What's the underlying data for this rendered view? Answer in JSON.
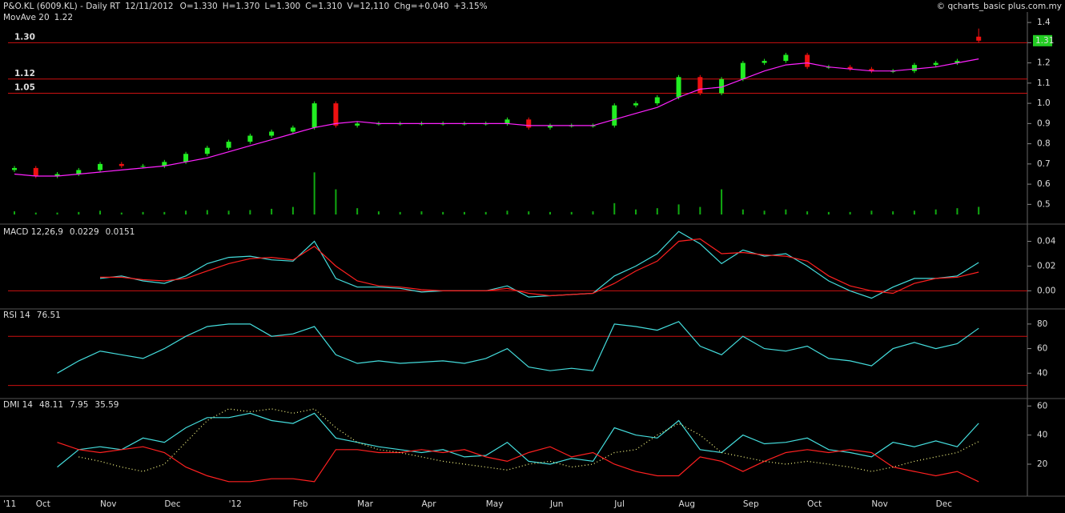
{
  "header": {
    "title": "P&O.KL (6009.KL) - Daily RT",
    "date": "12/11/2012",
    "quote": [
      "O=1.330",
      "H=1.370",
      "L=1.300",
      "C=1.310",
      "V=12,110",
      "Chg=+0.040",
      "+3.15%"
    ],
    "copyright": "© qcharts_basic plus.com.my"
  },
  "chart_data": [
    {
      "type": "candlestick",
      "categories": [
        "'11",
        "Oct",
        null,
        null,
        "Nov",
        null,
        null,
        "Dec",
        null,
        null,
        "'12",
        null,
        null,
        "Feb",
        null,
        null,
        "Mar",
        null,
        null,
        "Apr",
        null,
        null,
        "May",
        null,
        null,
        "Jun",
        null,
        null,
        "Jul",
        null,
        null,
        "Aug",
        null,
        null,
        "Sep",
        null,
        null,
        "Oct",
        null,
        null,
        "Nov",
        null,
        null,
        "Dec",
        null,
        null
      ],
      "open": [
        0.67,
        0.68,
        0.64,
        0.65,
        0.67,
        0.7,
        0.69,
        0.69,
        0.71,
        0.75,
        0.78,
        0.81,
        0.84,
        0.86,
        0.88,
        1.0,
        0.89,
        0.9,
        0.9,
        0.9,
        0.9,
        0.9,
        0.9,
        0.9,
        0.92,
        0.88,
        0.89,
        0.89,
        0.89,
        0.99,
        1.0,
        1.03,
        1.13,
        1.05,
        1.12,
        1.2,
        1.21,
        1.24,
        1.18,
        1.18,
        1.17,
        1.16,
        1.16,
        1.19,
        1.2,
        1.33
      ],
      "high": [
        0.69,
        0.69,
        0.66,
        0.68,
        0.71,
        0.71,
        0.7,
        0.72,
        0.76,
        0.79,
        0.82,
        0.85,
        0.87,
        0.89,
        1.01,
        1.01,
        0.91,
        0.91,
        0.91,
        0.91,
        0.91,
        0.91,
        0.91,
        0.93,
        0.93,
        0.9,
        0.9,
        0.9,
        1.0,
        1.01,
        1.04,
        1.14,
        1.14,
        1.13,
        1.21,
        1.22,
        1.25,
        1.25,
        1.19,
        1.19,
        1.18,
        1.17,
        1.2,
        1.21,
        1.22,
        1.37
      ],
      "low": [
        0.66,
        0.63,
        0.63,
        0.64,
        0.66,
        0.68,
        0.68,
        0.68,
        0.7,
        0.74,
        0.77,
        0.8,
        0.83,
        0.85,
        0.87,
        0.88,
        0.88,
        0.89,
        0.89,
        0.89,
        0.89,
        0.89,
        0.89,
        0.89,
        0.87,
        0.87,
        0.88,
        0.88,
        0.88,
        0.98,
        0.99,
        1.02,
        1.04,
        1.04,
        1.11,
        1.19,
        1.2,
        1.17,
        1.17,
        1.16,
        1.15,
        1.15,
        1.15,
        1.18,
        1.19,
        1.3
      ],
      "close": [
        0.68,
        0.64,
        0.65,
        0.67,
        0.7,
        0.69,
        0.69,
        0.71,
        0.75,
        0.78,
        0.81,
        0.84,
        0.86,
        0.88,
        1.0,
        0.89,
        0.9,
        0.9,
        0.9,
        0.9,
        0.9,
        0.9,
        0.9,
        0.92,
        0.88,
        0.89,
        0.89,
        0.89,
        0.99,
        1.0,
        1.03,
        1.13,
        1.05,
        1.12,
        1.2,
        1.21,
        1.24,
        1.18,
        1.18,
        1.17,
        1.16,
        1.16,
        1.19,
        1.2,
        1.21,
        1.31
      ],
      "up_color": "#22ee22",
      "down_color": "#ee1111",
      "ylim": [
        0.45,
        1.44
      ],
      "yticks": [
        1.4,
        1.3,
        1.2,
        1.1,
        {
          "value": 1,
          "label": "1.0"
        },
        0.9,
        0.8,
        0.7,
        0.6,
        0.5
      ],
      "levels": [
        {
          "value": 1.3,
          "label": "1.30"
        },
        {
          "value": 1.12,
          "label": "1.12"
        },
        {
          "value": 1.05,
          "label": "1.05"
        }
      ],
      "level_color": "#cc1111",
      "series": [
        {
          "name": "MovAve 20",
          "color": "#ff22ff",
          "values": [
            0.65,
            0.64,
            0.64,
            0.65,
            0.66,
            0.67,
            0.68,
            0.69,
            0.71,
            0.73,
            0.76,
            0.79,
            0.82,
            0.85,
            0.88,
            0.9,
            0.91,
            0.9,
            0.9,
            0.9,
            0.9,
            0.9,
            0.9,
            0.9,
            0.89,
            0.89,
            0.89,
            0.89,
            0.92,
            0.95,
            0.98,
            1.03,
            1.07,
            1.08,
            1.12,
            1.16,
            1.19,
            1.2,
            1.18,
            1.17,
            1.16,
            1.16,
            1.17,
            1.18,
            1.2,
            1.22
          ]
        }
      ],
      "volume": {
        "color": "#11aa11",
        "vlim": [
          0,
          70000
        ],
        "values": [
          5000,
          3000,
          3000,
          4000,
          6000,
          3000,
          4000,
          4000,
          6000,
          7000,
          6000,
          7000,
          9000,
          12000,
          67000,
          40000,
          10000,
          5000,
          4000,
          5000,
          4000,
          4000,
          4000,
          6000,
          5000,
          4000,
          4000,
          5000,
          18000,
          8000,
          10000,
          16000,
          12000,
          40000,
          8000,
          6000,
          8000,
          5000,
          4000,
          4000,
          6000,
          5000,
          6000,
          8000,
          10000,
          12110
        ]
      }
    },
    {
      "type": "line",
      "title": "MACD 12,26,9",
      "ylim": [
        -0.014,
        0.052
      ],
      "yticks": [
        0.04,
        0.02,
        {
          "value": 0,
          "label": "0.00"
        }
      ],
      "levels": [
        0
      ],
      "level_color": "#cc1111",
      "series": [
        {
          "color": "#44dddd",
          "values": [
            null,
            null,
            null,
            null,
            0.01,
            0.012,
            0.008,
            0.006,
            0.012,
            0.022,
            0.027,
            0.028,
            0.025,
            0.024,
            0.04,
            0.01,
            0.003,
            0.003,
            0.002,
            -0.001,
            0.0,
            0.0,
            0.0,
            0.004,
            -0.005,
            -0.004,
            -0.003,
            -0.002,
            0.012,
            0.02,
            0.03,
            0.048,
            0.038,
            0.022,
            0.033,
            0.028,
            0.03,
            0.02,
            0.008,
            0.0,
            -0.006,
            0.003,
            0.01,
            0.01,
            0.012,
            0.0229
          ]
        },
        {
          "color": "#ff2020",
          "values": [
            null,
            null,
            null,
            null,
            0.011,
            0.011,
            0.009,
            0.008,
            0.01,
            0.016,
            0.022,
            0.026,
            0.027,
            0.025,
            0.036,
            0.02,
            0.008,
            0.004,
            0.003,
            0.001,
            0.0,
            0.0,
            0.0,
            0.002,
            -0.002,
            -0.004,
            -0.003,
            -0.002,
            0.006,
            0.016,
            0.024,
            0.04,
            0.042,
            0.03,
            0.031,
            0.029,
            0.028,
            0.024,
            0.012,
            0.004,
            0.0,
            -0.002,
            0.006,
            0.01,
            0.011,
            0.0151
          ]
        }
      ]
    },
    {
      "type": "line",
      "title": "RSI 14",
      "ylim": [
        20,
        91
      ],
      "yticks": [
        80,
        60,
        40
      ],
      "levels": [
        70,
        30
      ],
      "level_color": "#cc1111",
      "series": [
        {
          "color": "#44dddd",
          "values": [
            null,
            null,
            40,
            50,
            58,
            55,
            52,
            60,
            70,
            78,
            80,
            80,
            70,
            72,
            78,
            55,
            48,
            50,
            48,
            49,
            50,
            48,
            52,
            60,
            45,
            42,
            44,
            42,
            80,
            78,
            75,
            82,
            62,
            55,
            70,
            60,
            58,
            62,
            52,
            50,
            46,
            60,
            65,
            60,
            64,
            76.51
          ]
        }
      ]
    },
    {
      "type": "line",
      "title": "DMI 14",
      "ylim": [
        -2,
        64
      ],
      "yticks": [
        60,
        40,
        20
      ],
      "levels": [],
      "series": [
        {
          "color": "#44dddd",
          "values": [
            null,
            null,
            18,
            30,
            32,
            30,
            38,
            35,
            45,
            52,
            52,
            55,
            50,
            48,
            55,
            38,
            35,
            32,
            30,
            28,
            30,
            25,
            26,
            35,
            22,
            20,
            24,
            22,
            45,
            40,
            38,
            50,
            30,
            28,
            40,
            34,
            35,
            38,
            30,
            28,
            25,
            35,
            32,
            36,
            32,
            48.11
          ]
        },
        {
          "color": "#ff2020",
          "values": [
            null,
            null,
            35,
            30,
            28,
            30,
            32,
            28,
            18,
            12,
            8,
            8,
            10,
            10,
            8,
            30,
            30,
            28,
            28,
            30,
            28,
            30,
            25,
            22,
            28,
            32,
            25,
            28,
            20,
            15,
            12,
            12,
            25,
            22,
            15,
            22,
            28,
            30,
            28,
            30,
            28,
            18,
            15,
            12,
            15,
            7.95
          ]
        },
        {
          "color": "#ffff88",
          "dashed": true,
          "values": [
            null,
            null,
            null,
            25,
            22,
            18,
            15,
            20,
            35,
            50,
            58,
            56,
            58,
            55,
            58,
            45,
            35,
            30,
            28,
            25,
            22,
            20,
            18,
            16,
            20,
            22,
            18,
            20,
            28,
            30,
            40,
            48,
            40,
            28,
            25,
            22,
            20,
            22,
            20,
            18,
            15,
            18,
            22,
            25,
            28,
            35.59
          ]
        }
      ]
    }
  ]
}
